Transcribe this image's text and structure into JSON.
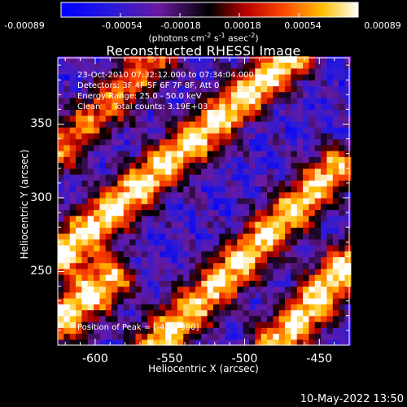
{
  "colorbar": {
    "tick_labels": [
      "-0.00089",
      "-0.00054",
      "-0.00018",
      "0.00018",
      "0.00054",
      "0.00089"
    ],
    "units_prefix": "(photons cm",
    "units_exp1": "-2",
    "units_mid": " s",
    "units_exp2": "-1",
    "units_mid2": " asec",
    "units_exp3": "-2",
    "units_suffix": ")",
    "range": [
      -0.00089,
      0.00089
    ]
  },
  "title": "Reconstructed RHESSI Image",
  "info_lines": [
    "23-Oct-2010 07:32:12.000 to 07:34:04.000",
    "Detectors: 3F 4F 5F 6F 7F 8F, Att 0",
    "Energy Range: 25.0 - 50.0 keV",
    "Clean     Total counts: 3.19E+03"
  ],
  "peak_label": "Position of Peak = [-451, 390]",
  "x_axis": {
    "label": "Heliocentric X (arcsec)",
    "ticks": [
      "-600",
      "-550",
      "-500",
      "-450"
    ],
    "range": [
      -625,
      -430
    ]
  },
  "y_axis": {
    "label": "Heliocentric Y (arcsec)",
    "ticks": [
      "250",
      "300",
      "350"
    ],
    "range": [
      200,
      395
    ]
  },
  "footer_date": "10-May-2022 13:50",
  "chart_data": {
    "type": "heatmap",
    "title": "Reconstructed RHESSI Image",
    "xlabel": "Heliocentric X (arcsec)",
    "ylabel": "Heliocentric Y (arcsec)",
    "xlim": [
      -625,
      -430
    ],
    "ylim": [
      200,
      395
    ],
    "colorscale_range": [
      -0.00089,
      0.00089
    ],
    "colormap": "blue-purple-black-red-yellow-white",
    "peak": [
      -451,
      390
    ],
    "pattern": "diagonal bands of positive flux running lower-left to upper-right, alternating with negative (blue/purple) bands",
    "bands": [
      {
        "from": [
          -625,
          260
        ],
        "to": [
          -470,
          395
        ],
        "sign": "positive",
        "peak_value": 0.00089
      },
      {
        "from": [
          -560,
          200
        ],
        "to": [
          -440,
          320
        ],
        "sign": "positive",
        "peak_value": 0.0008
      },
      {
        "from": [
          -480,
          200
        ],
        "to": [
          -430,
          255
        ],
        "sign": "positive",
        "peak_value": 0.00089
      },
      {
        "from": [
          -625,
          330
        ],
        "to": [
          -560,
          395
        ],
        "sign": "positive",
        "peak_value": 0.0005
      },
      {
        "from": [
          -625,
          215
        ],
        "to": [
          -590,
          245
        ],
        "sign": "positive",
        "peak_value": 0.00085
      }
    ]
  }
}
